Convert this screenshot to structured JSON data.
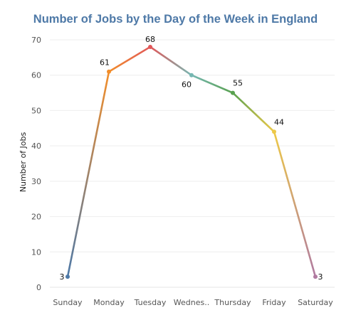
{
  "chart_data": {
    "type": "line",
    "title": "Number of Jobs by the Day of the Week in England",
    "xlabel": "",
    "ylabel": "Number of Jobs",
    "categories": [
      "Sunday",
      "Monday",
      "Tuesday",
      "Wednes..",
      "Thursday",
      "Friday",
      "Saturday"
    ],
    "values": [
      3,
      61,
      68,
      60,
      55,
      44,
      3
    ],
    "ylim": [
      0,
      70
    ],
    "yticks": [
      0,
      10,
      20,
      30,
      40,
      50,
      60,
      70
    ],
    "grid": true,
    "point_colors": [
      "#4e79a7",
      "#f28e2b",
      "#e15759",
      "#76b7b2",
      "#59a14f",
      "#edc948",
      "#b07aa1"
    ],
    "title_color": "#4e79a7"
  }
}
